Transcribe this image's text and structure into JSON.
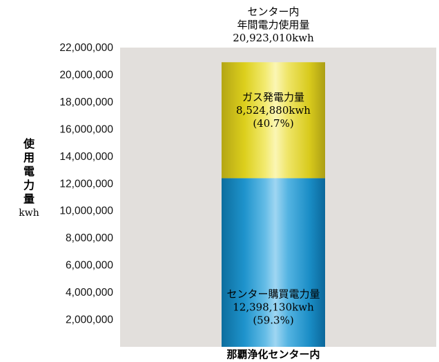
{
  "title": {
    "line1": "センター内",
    "line2": "年間電力使用量",
    "line3": "20,923,010kwh"
  },
  "y_axis_label": {
    "chars": [
      "使",
      "用",
      "電",
      "力",
      "量"
    ],
    "unit": "kwh"
  },
  "colors": {
    "plot_background": "#e2dfdc",
    "purchased_segment": "#1893cc",
    "gas_segment": "#dccf1c"
  },
  "chart_data": {
    "type": "bar",
    "stacked": true,
    "categories": [
      "那覇浄化センター内"
    ],
    "ylim": [
      0,
      22000000
    ],
    "y_ticks": [
      {
        "value": 2000000,
        "label": "2,000,000"
      },
      {
        "value": 4000000,
        "label": "4,000,000"
      },
      {
        "value": 6000000,
        "label": "6,000,000"
      },
      {
        "value": 8000000,
        "label": "8,000,000"
      },
      {
        "value": 10000000,
        "label": "10,000,000"
      },
      {
        "value": 12000000,
        "label": "12,000,000"
      },
      {
        "value": 14000000,
        "label": "14,000,000"
      },
      {
        "value": 16000000,
        "label": "16,000,000"
      },
      {
        "value": 18000000,
        "label": "18,000,000"
      },
      {
        "value": 20000000,
        "label": "20,000,000"
      },
      {
        "value": 22000000,
        "label": "22,000,000"
      }
    ],
    "series": [
      {
        "name": "センター購買電力量",
        "values": [
          12398130
        ],
        "value_label": "12,398,130kwh",
        "percent_label": "(59.3%)"
      },
      {
        "name": "ガス発電力量",
        "values": [
          8524880
        ],
        "value_label": "8,524,880kwh",
        "percent_label": "(40.7%)"
      }
    ],
    "grid": false
  }
}
